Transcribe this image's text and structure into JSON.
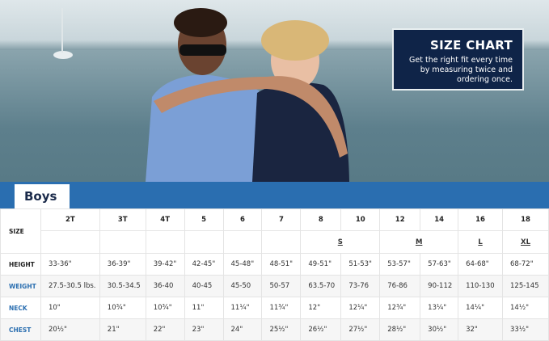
{
  "promo": {
    "title": "SIZE CHART",
    "text": "Get the right fit every time by measuring twice and ordering once."
  },
  "tab": "Boys",
  "table": {
    "size_label": "SIZE",
    "sizes": [
      "2T",
      "3T",
      "4T",
      "5",
      "6",
      "7",
      "8",
      "10",
      "12",
      "14",
      "16",
      "18"
    ],
    "letter_sizes": [
      "S",
      "M",
      "L",
      "XL"
    ],
    "rows": [
      {
        "label": "HEIGHT",
        "values": [
          "33-36\"",
          "36-39\"",
          "39-42\"",
          "42-45\"",
          "45-48\"",
          "48-51\"",
          "49-51\"",
          "51-53\"",
          "53-57\"",
          "57-63\"",
          "64-68\"",
          "68-72\""
        ]
      },
      {
        "label": "WEIGHT",
        "values": [
          "27.5-30.5 lbs.",
          "30.5-34.5",
          "36-40",
          "40-45",
          "45-50",
          "50-57",
          "63.5-70",
          "73-76",
          "76-86",
          "90-112",
          "110-130",
          "125-145"
        ]
      },
      {
        "label": "NECK",
        "values": [
          "10\"",
          "10¾\"",
          "10¾\"",
          "11\"",
          "11¼\"",
          "11¾\"",
          "12\"",
          "12¼\"",
          "12¾\"",
          "13¼\"",
          "14¼\"",
          "14½\""
        ]
      },
      {
        "label": "CHEST",
        "values": [
          "20½\"",
          "21\"",
          "22\"",
          "23\"",
          "24\"",
          "25½\"",
          "26½\"",
          "27½\"",
          "28½\"",
          "30½\"",
          "32\"",
          "33½\""
        ]
      }
    ]
  },
  "colors": {
    "navy": "#0f2448",
    "blue": "#2a6eb0"
  }
}
